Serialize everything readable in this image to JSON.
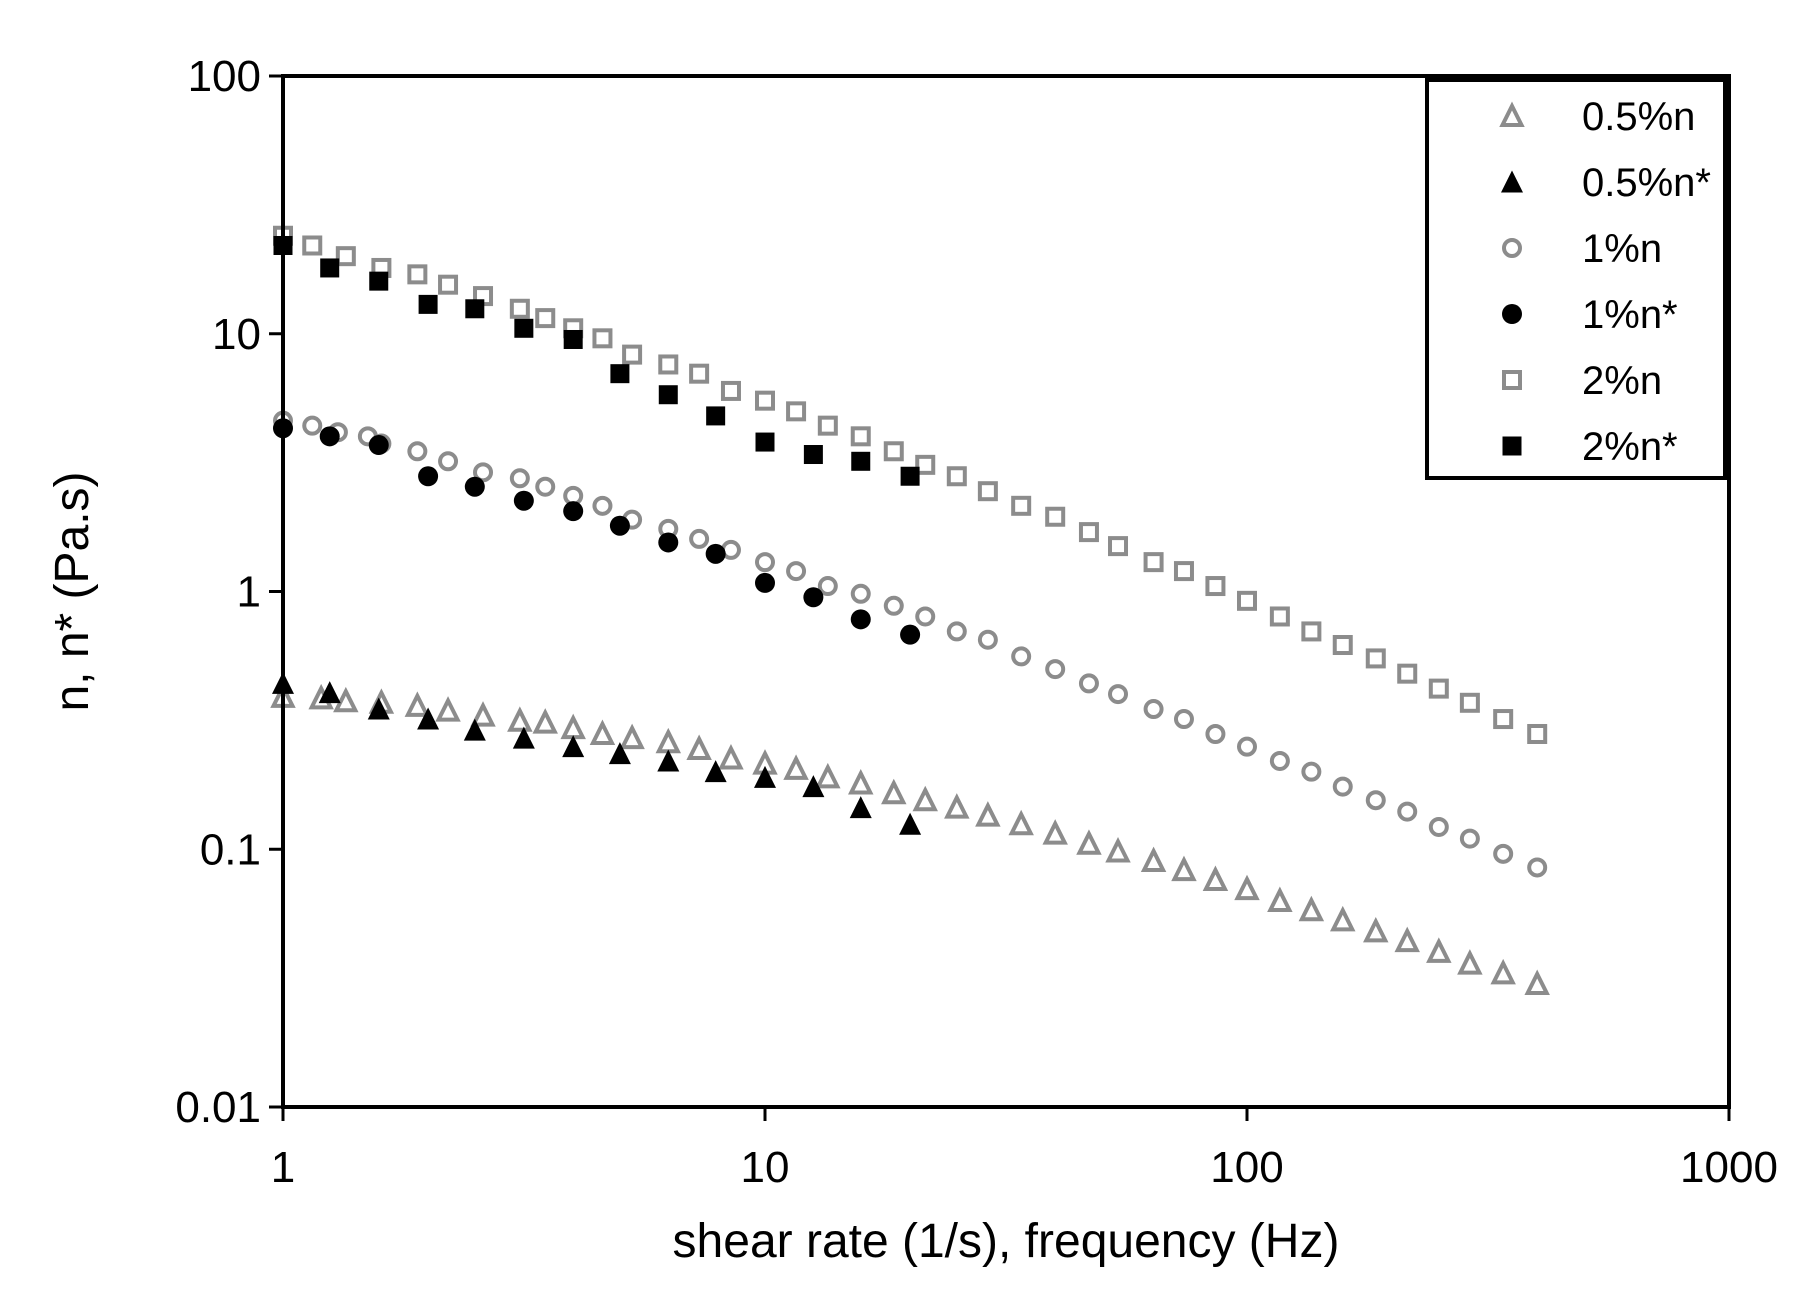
{
  "chart_data": {
    "type": "scatter",
    "title": "",
    "xlabel": "shear rate (1/s), frequency (Hz)",
    "ylabel": "n, n* (Pa.s)",
    "xscale": "log",
    "yscale": "log",
    "xlim": [
      1,
      1000
    ],
    "ylim": [
      0.01,
      100
    ],
    "grid": false,
    "legend_position": "top-right",
    "x_ticks": [
      {
        "value": 1,
        "label": "1"
      },
      {
        "value": 10,
        "label": "10"
      },
      {
        "value": 100,
        "label": "100"
      },
      {
        "value": 1000,
        "label": "1000"
      }
    ],
    "y_ticks": [
      {
        "value": 0.01,
        "label": "0.01"
      },
      {
        "value": 0.1,
        "label": "0.1"
      },
      {
        "value": 1,
        "label": "1"
      },
      {
        "value": 10,
        "label": "10"
      },
      {
        "value": 100,
        "label": "100"
      }
    ],
    "series": [
      {
        "name": "0.5%n",
        "marker": "triangle",
        "filled": false,
        "color": "#8c8c8c",
        "points": [
          [
            1,
            0.39
          ],
          [
            1.2,
            0.385
          ],
          [
            1.35,
            0.375
          ],
          [
            1.6,
            0.37
          ],
          [
            1.9,
            0.36
          ],
          [
            2.2,
            0.345
          ],
          [
            2.6,
            0.33
          ],
          [
            3.1,
            0.315
          ],
          [
            3.5,
            0.31
          ],
          [
            4.0,
            0.295
          ],
          [
            4.6,
            0.28
          ],
          [
            5.3,
            0.27
          ],
          [
            6.3,
            0.26
          ],
          [
            7.3,
            0.245
          ],
          [
            8.5,
            0.225
          ],
          [
            10,
            0.215
          ],
          [
            11.6,
            0.205
          ],
          [
            13.5,
            0.19
          ],
          [
            15.8,
            0.18
          ],
          [
            18.5,
            0.165
          ],
          [
            21.5,
            0.155
          ],
          [
            25,
            0.145
          ],
          [
            29,
            0.135
          ],
          [
            34,
            0.125
          ],
          [
            40,
            0.115
          ],
          [
            47,
            0.105
          ],
          [
            54,
            0.098
          ],
          [
            64,
            0.09
          ],
          [
            74,
            0.083
          ],
          [
            86,
            0.076
          ],
          [
            100,
            0.07
          ],
          [
            117,
            0.063
          ],
          [
            136,
            0.058
          ],
          [
            158,
            0.053
          ],
          [
            185,
            0.048
          ],
          [
            215,
            0.044
          ],
          [
            250,
            0.04
          ],
          [
            290,
            0.036
          ],
          [
            340,
            0.033
          ],
          [
            400,
            0.03
          ]
        ]
      },
      {
        "name": "0.5%n*",
        "marker": "triangle",
        "filled": true,
        "color": "#000000",
        "points": [
          [
            1,
            0.44
          ],
          [
            1.25,
            0.405
          ],
          [
            1.58,
            0.35
          ],
          [
            2.0,
            0.32
          ],
          [
            2.5,
            0.29
          ],
          [
            3.16,
            0.27
          ],
          [
            4.0,
            0.25
          ],
          [
            5.0,
            0.235
          ],
          [
            6.3,
            0.22
          ],
          [
            7.9,
            0.2
          ],
          [
            10,
            0.19
          ],
          [
            12.6,
            0.175
          ],
          [
            15.8,
            0.145
          ],
          [
            20,
            0.125
          ]
        ]
      },
      {
        "name": "1%n",
        "marker": "circle",
        "filled": false,
        "color": "#8c8c8c",
        "points": [
          [
            1,
            4.6
          ],
          [
            1.15,
            4.4
          ],
          [
            1.3,
            4.15
          ],
          [
            1.5,
            4.0
          ],
          [
            1.6,
            3.75
          ],
          [
            1.9,
            3.5
          ],
          [
            2.2,
            3.2
          ],
          [
            2.6,
            2.9
          ],
          [
            3.1,
            2.75
          ],
          [
            3.5,
            2.55
          ],
          [
            4.0,
            2.35
          ],
          [
            4.6,
            2.15
          ],
          [
            5.3,
            1.9
          ],
          [
            6.3,
            1.75
          ],
          [
            7.3,
            1.6
          ],
          [
            8.5,
            1.45
          ],
          [
            10,
            1.3
          ],
          [
            11.6,
            1.2
          ],
          [
            13.5,
            1.05
          ],
          [
            15.8,
            0.98
          ],
          [
            18.5,
            0.88
          ],
          [
            21.5,
            0.8
          ],
          [
            25,
            0.7
          ],
          [
            29,
            0.65
          ],
          [
            34,
            0.56
          ],
          [
            40,
            0.5
          ],
          [
            47,
            0.44
          ],
          [
            54,
            0.4
          ],
          [
            64,
            0.35
          ],
          [
            74,
            0.32
          ],
          [
            86,
            0.28
          ],
          [
            100,
            0.25
          ],
          [
            117,
            0.22
          ],
          [
            136,
            0.2
          ],
          [
            158,
            0.175
          ],
          [
            185,
            0.155
          ],
          [
            215,
            0.14
          ],
          [
            250,
            0.122
          ],
          [
            290,
            0.11
          ],
          [
            340,
            0.096
          ],
          [
            400,
            0.085
          ]
        ]
      },
      {
        "name": "1%n*",
        "marker": "circle",
        "filled": true,
        "color": "#000000",
        "points": [
          [
            1,
            4.3
          ],
          [
            1.25,
            4.0
          ],
          [
            1.58,
            3.7
          ],
          [
            2.0,
            2.8
          ],
          [
            2.5,
            2.55
          ],
          [
            3.16,
            2.25
          ],
          [
            4.0,
            2.05
          ],
          [
            5.0,
            1.8
          ],
          [
            6.3,
            1.55
          ],
          [
            7.9,
            1.4
          ],
          [
            10,
            1.08
          ],
          [
            12.6,
            0.95
          ],
          [
            15.8,
            0.78
          ],
          [
            20,
            0.68
          ]
        ]
      },
      {
        "name": "2%n",
        "marker": "square",
        "filled": false,
        "color": "#8c8c8c",
        "points": [
          [
            1,
            24
          ],
          [
            1.15,
            22
          ],
          [
            1.35,
            20
          ],
          [
            1.6,
            18
          ],
          [
            1.9,
            17
          ],
          [
            2.2,
            15.5
          ],
          [
            2.6,
            14
          ],
          [
            3.1,
            12.5
          ],
          [
            3.5,
            11.5
          ],
          [
            4.0,
            10.5
          ],
          [
            4.6,
            9.6
          ],
          [
            5.3,
            8.3
          ],
          [
            6.3,
            7.6
          ],
          [
            7.3,
            7.0
          ],
          [
            8.5,
            6.0
          ],
          [
            10,
            5.5
          ],
          [
            11.6,
            5.0
          ],
          [
            13.5,
            4.4
          ],
          [
            15.8,
            4.0
          ],
          [
            18.5,
            3.5
          ],
          [
            21.5,
            3.1
          ],
          [
            25,
            2.8
          ],
          [
            29,
            2.45
          ],
          [
            34,
            2.15
          ],
          [
            40,
            1.95
          ],
          [
            47,
            1.7
          ],
          [
            54,
            1.5
          ],
          [
            64,
            1.3
          ],
          [
            74,
            1.2
          ],
          [
            86,
            1.05
          ],
          [
            100,
            0.92
          ],
          [
            117,
            0.8
          ],
          [
            136,
            0.7
          ],
          [
            158,
            0.62
          ],
          [
            185,
            0.55
          ],
          [
            215,
            0.48
          ],
          [
            250,
            0.42
          ],
          [
            290,
            0.37
          ],
          [
            340,
            0.32
          ],
          [
            400,
            0.28
          ]
        ]
      },
      {
        "name": "2%n*",
        "marker": "square",
        "filled": true,
        "color": "#000000",
        "points": [
          [
            1,
            22
          ],
          [
            1.25,
            18
          ],
          [
            1.58,
            16
          ],
          [
            2.0,
            13
          ],
          [
            2.5,
            12.5
          ],
          [
            3.16,
            10.5
          ],
          [
            4.0,
            9.5
          ],
          [
            5.0,
            7.0
          ],
          [
            6.3,
            5.8
          ],
          [
            7.9,
            4.8
          ],
          [
            10,
            3.8
          ],
          [
            12.6,
            3.4
          ],
          [
            15.8,
            3.2
          ],
          [
            20,
            2.8
          ]
        ]
      }
    ]
  }
}
